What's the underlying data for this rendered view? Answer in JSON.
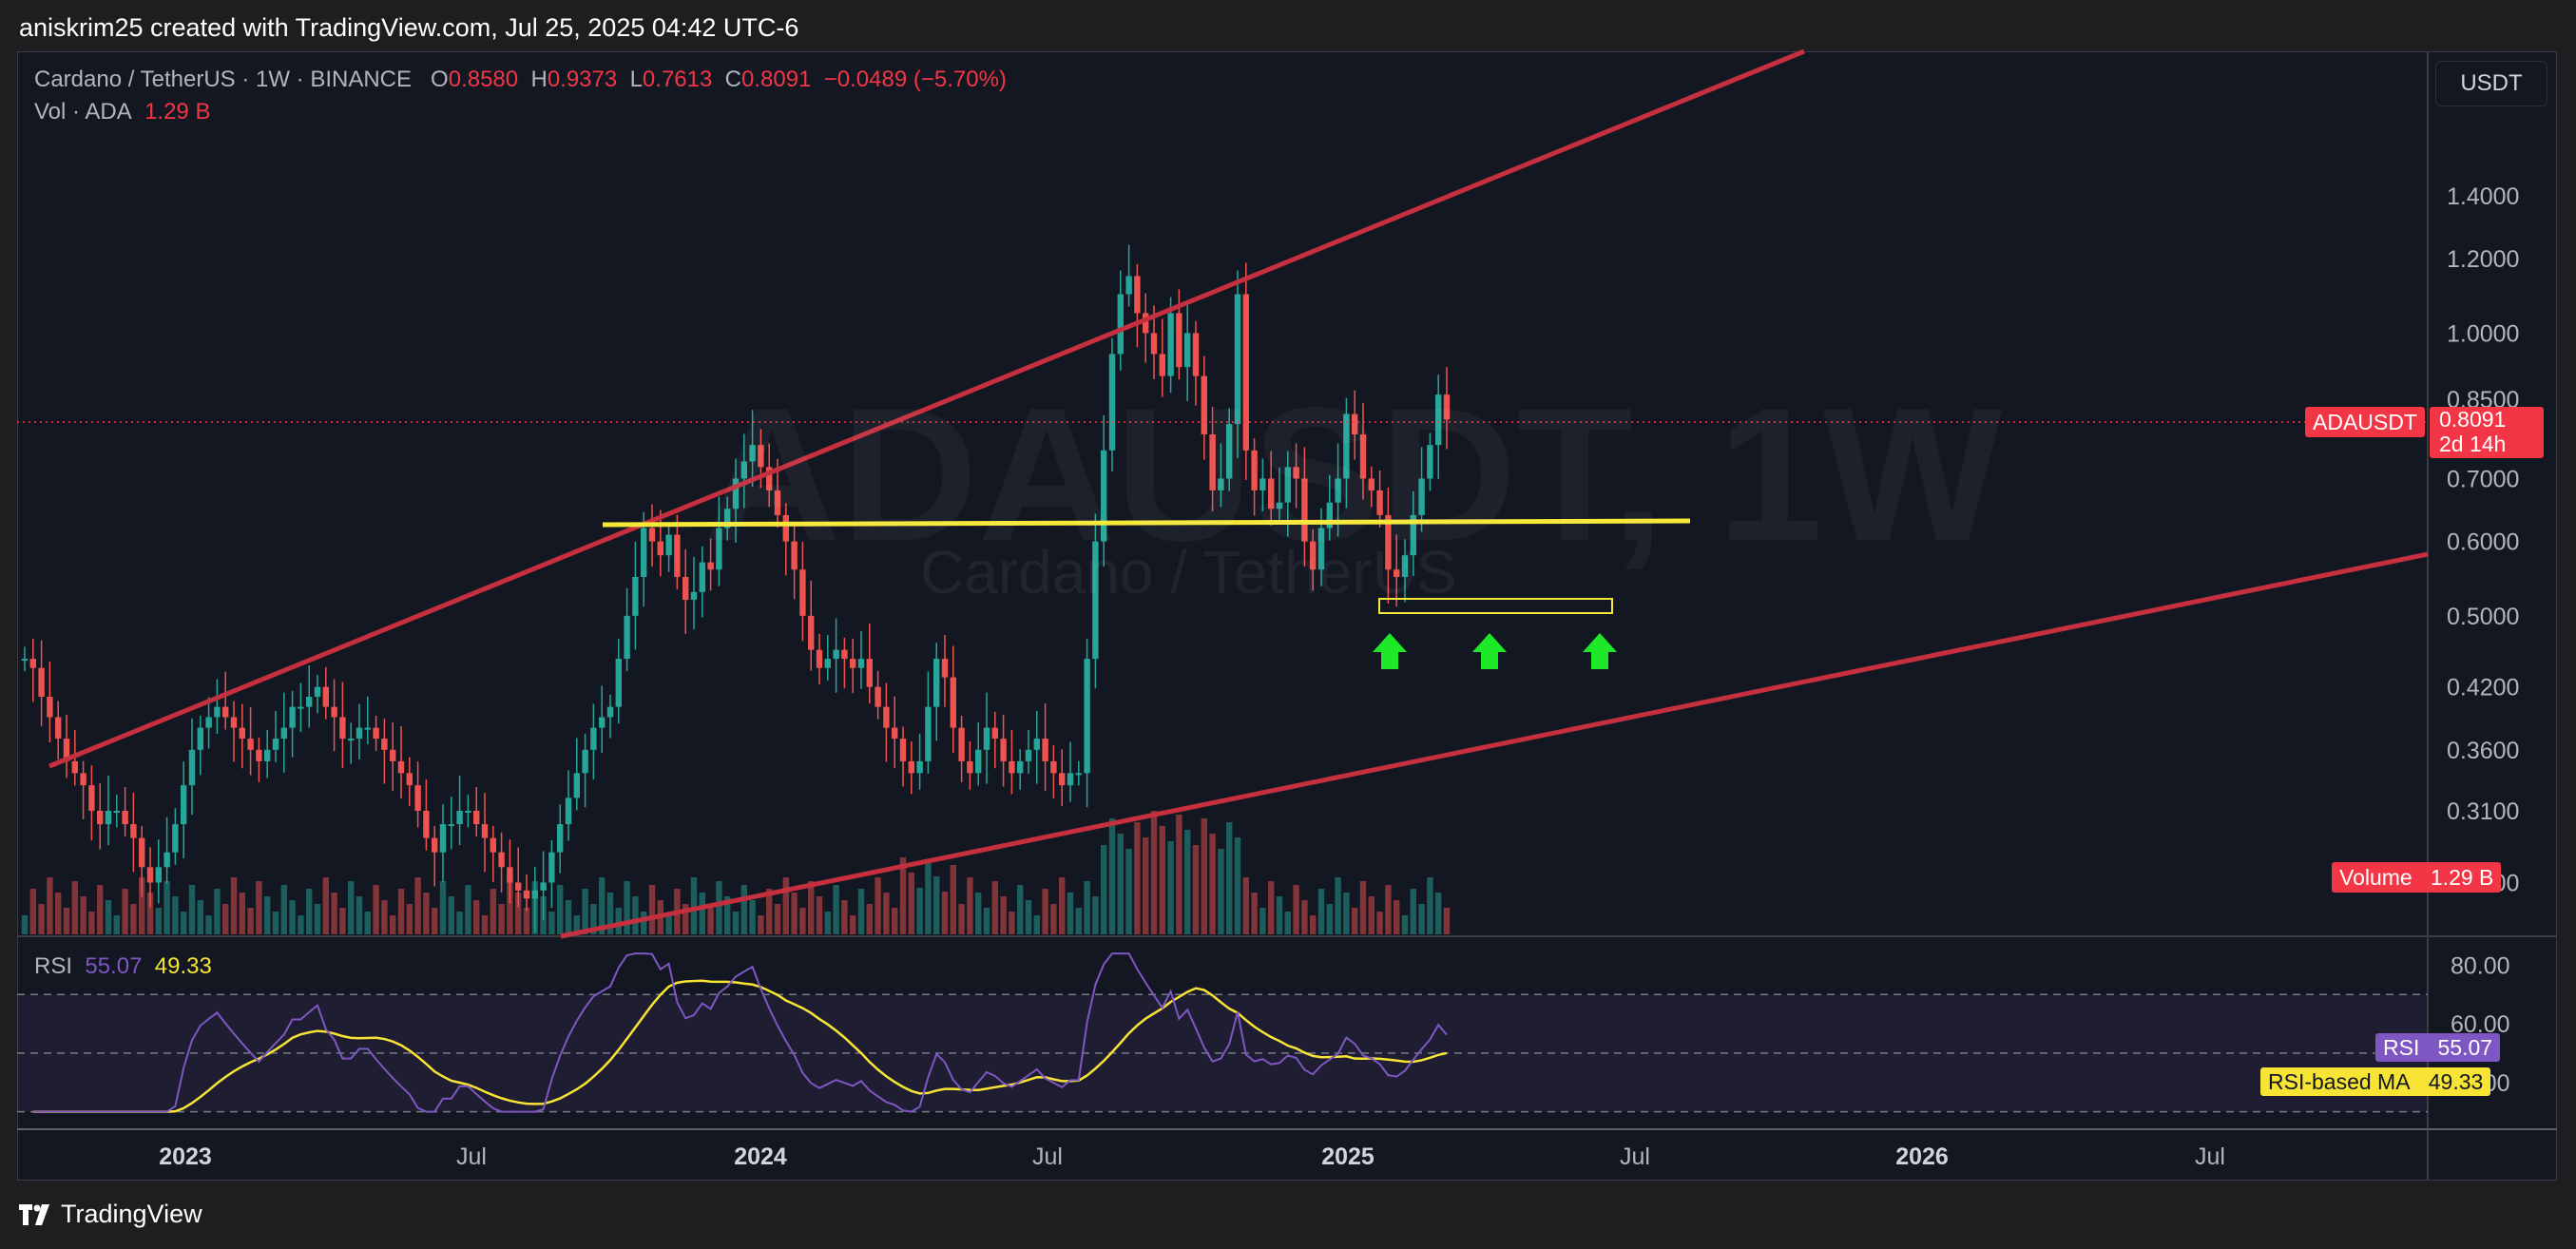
{
  "header": {
    "text": "aniskrim25 created with TradingView.com, Jul 25, 2025 04:42 UTC-6"
  },
  "legend": {
    "symbol": "Cardano / TetherUS · 1W · BINANCE",
    "o_label": "O",
    "o_value": "0.8580",
    "h_label": "H",
    "h_value": "0.9373",
    "l_label": "L",
    "l_value": "0.7613",
    "c_label": "C",
    "c_value": "0.8091",
    "change": "−0.0489 (−5.70%)",
    "vol_label": "Vol · ADA",
    "vol_value": "1.29 B"
  },
  "rsi_legend": {
    "label": "RSI",
    "rsi_value": "55.07",
    "ma_value": "49.33"
  },
  "currency_button": "USDT",
  "watermark": {
    "ticker": "ADAUSDT, 1W",
    "name": "Cardano / TetherUS"
  },
  "price_tag": {
    "symbol": "ADAUSDT",
    "price": "0.8091",
    "countdown": "2d 14h"
  },
  "volume_tag": {
    "label": "Volume",
    "value": "1.29 B"
  },
  "rsi_tag": {
    "label": "RSI",
    "value": "55.07"
  },
  "rsi_ma_tag": {
    "label": "RSI-based MA",
    "value": "49.33"
  },
  "footer": {
    "brand": "TradingView"
  },
  "colors": {
    "up": "#26a69a",
    "down": "#ef5350",
    "channel": "#c62f3e",
    "support": "#f5e839",
    "arrow": "#1de928",
    "rsi": "#7e57c2",
    "rsi_ma": "#f7e434",
    "background": "#131722"
  },
  "chart_data": {
    "type": "candlestick",
    "symbol": "Cardano / TetherUS",
    "interval": "1W",
    "exchange": "BINANCE",
    "price_axis": {
      "scale": "log",
      "ticks": [
        "1.4000",
        "1.2000",
        "1.0000",
        "0.8500",
        "0.7000",
        "0.6000",
        "0.5000",
        "0.4200",
        "0.3600",
        "0.3100",
        "0.2600"
      ],
      "range": [
        0.24,
        1.8
      ]
    },
    "time_axis": {
      "ticks": [
        "2023",
        "Jul",
        "2024",
        "Jul",
        "2025",
        "Jul",
        "2026",
        "Jul"
      ]
    },
    "close_series": [
      0.45,
      0.44,
      0.41,
      0.39,
      0.37,
      0.35,
      0.34,
      0.33,
      0.31,
      0.3,
      0.31,
      0.31,
      0.3,
      0.29,
      0.27,
      0.26,
      0.27,
      0.28,
      0.3,
      0.33,
      0.36,
      0.38,
      0.39,
      0.4,
      0.39,
      0.38,
      0.37,
      0.36,
      0.35,
      0.36,
      0.37,
      0.38,
      0.4,
      0.4,
      0.41,
      0.42,
      0.4,
      0.39,
      0.37,
      0.37,
      0.38,
      0.38,
      0.37,
      0.36,
      0.35,
      0.34,
      0.33,
      0.31,
      0.29,
      0.28,
      0.3,
      0.3,
      0.31,
      0.31,
      0.3,
      0.29,
      0.28,
      0.27,
      0.26,
      0.255,
      0.25,
      0.255,
      0.26,
      0.28,
      0.3,
      0.32,
      0.34,
      0.36,
      0.38,
      0.39,
      0.4,
      0.45,
      0.5,
      0.55,
      0.62,
      0.6,
      0.58,
      0.61,
      0.55,
      0.52,
      0.53,
      0.57,
      0.56,
      0.62,
      0.65,
      0.7,
      0.73,
      0.76,
      0.72,
      0.68,
      0.64,
      0.6,
      0.56,
      0.5,
      0.46,
      0.44,
      0.45,
      0.46,
      0.45,
      0.44,
      0.45,
      0.42,
      0.4,
      0.38,
      0.37,
      0.35,
      0.34,
      0.35,
      0.4,
      0.45,
      0.43,
      0.38,
      0.35,
      0.34,
      0.36,
      0.38,
      0.37,
      0.35,
      0.34,
      0.35,
      0.36,
      0.37,
      0.35,
      0.34,
      0.33,
      0.34,
      0.34,
      0.45,
      0.6,
      0.75,
      0.95,
      1.1,
      1.15,
      1.05,
      1.0,
      0.95,
      0.9,
      1.05,
      0.92,
      1.0,
      0.9,
      0.78,
      0.68,
      0.7,
      0.8,
      1.1,
      0.75,
      0.68,
      0.7,
      0.65,
      0.66,
      0.72,
      0.7,
      0.6,
      0.56,
      0.62,
      0.66,
      0.7,
      0.82,
      0.78,
      0.7,
      0.68,
      0.64,
      0.56,
      0.55,
      0.58,
      0.64,
      0.7,
      0.76,
      0.86,
      0.8091
    ],
    "volume_note": "Volume last value 1.29 B",
    "rsi": {
      "period": 14,
      "last": 55.07,
      "ma_last": 49.33,
      "axis_ticks": [
        "80.00",
        "60.00",
        "40.00"
      ],
      "bands": [
        30,
        70
      ],
      "midline": 50
    },
    "annotations": [
      {
        "type": "rising_wedge_upper",
        "note": "upper trend line"
      },
      {
        "type": "rising_wedge_lower",
        "note": "lower trend line"
      },
      {
        "type": "horizontal_support",
        "level": 0.6
      },
      {
        "type": "rectangle",
        "note": "triple bottom zone around 0.52"
      },
      {
        "type": "arrows_up",
        "count": 3
      }
    ]
  }
}
